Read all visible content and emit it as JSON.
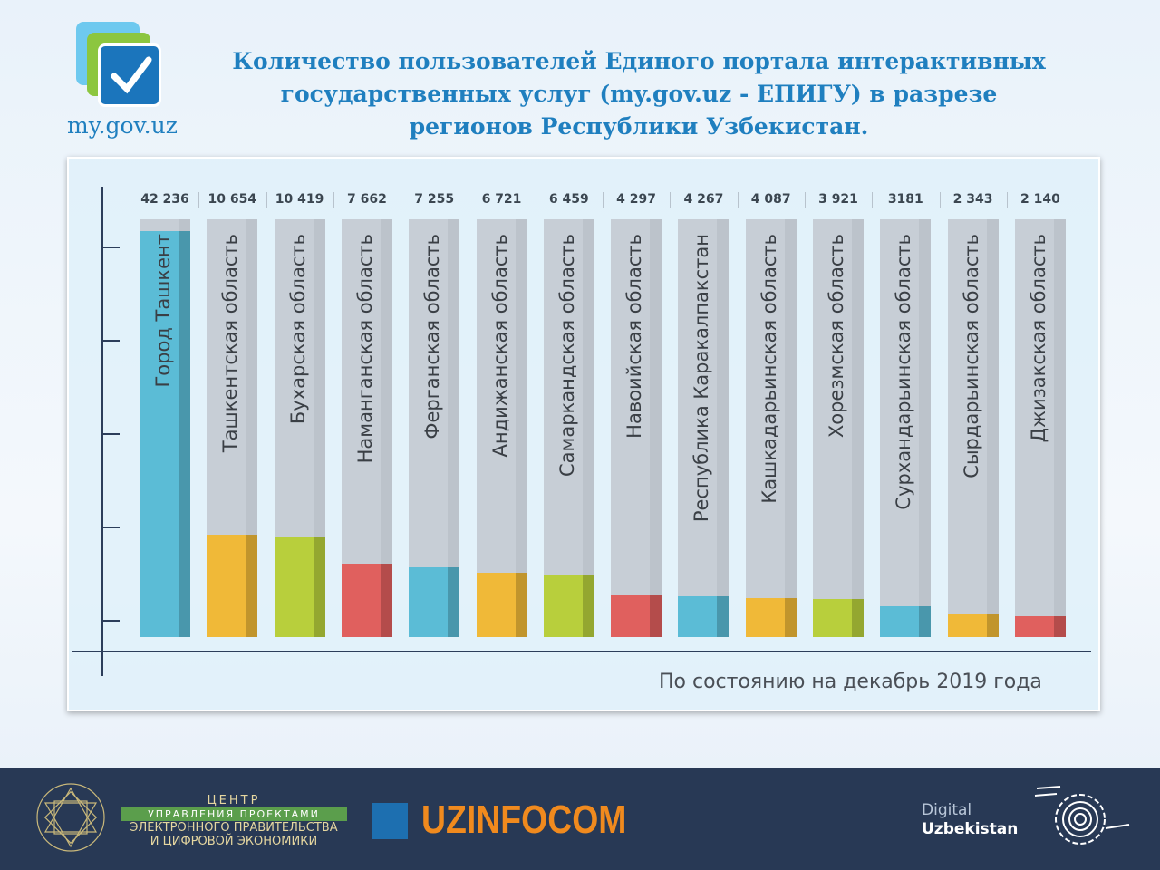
{
  "header": {
    "logo_text": "my.gov.uz",
    "title_lines": [
      "Количество пользователей Единого портала интерактивных",
      "государственных услуг (my.gov.uz - ЕПИГУ) в разрезе",
      "регионов Республики Узбекистан."
    ]
  },
  "chart_data": {
    "type": "bar",
    "title": "Количество пользователей Единого портала интерактивных государственных услуг (my.gov.uz - ЕПИГУ) в разрезе регионов Республики Узбекистан.",
    "categories": [
      "Город Ташкент",
      "Ташкентская область",
      "Бухарская область",
      "Наманганская область",
      "Ферганская область",
      "Андижанская область",
      "Самаркандская область",
      "Навоийская область",
      "Республика Каракалпакстан",
      "Кашкадарьинская область",
      "Хорезмская область",
      "Сурхандарьинская область",
      "Сырдарьинская область",
      "Джизакская область"
    ],
    "values": [
      42236,
      10654,
      10419,
      7662,
      7255,
      6721,
      6459,
      4297,
      4267,
      4087,
      3921,
      3181,
      2343,
      2140
    ],
    "value_labels": [
      "42 236",
      "10 654",
      "10 419",
      "7 662",
      "7 255",
      "6 721",
      "6 459",
      "4 297",
      "4 267",
      "4 087",
      "3 921",
      "3181",
      "2 343",
      "2 140"
    ],
    "colors": [
      "#5bbcd6",
      "#f0b938",
      "#b8cf3c",
      "#e0605e",
      "#5bbcd6",
      "#f0b938",
      "#b8cf3c",
      "#e0605e",
      "#5bbcd6",
      "#f0b938",
      "#b8cf3c",
      "#5bbcd6",
      "#f0b938",
      "#e0605e"
    ],
    "annotation": "По состоянию на декабрь 2019 года",
    "grid": false
  },
  "footer": {
    "center_lines": [
      "ЦЕНТР",
      "УПРАВЛЕНИЯ ПРОЕКТАМИ",
      "ЭЛЕКТРОННОГО ПРАВИТЕЛЬСТВА",
      "И ЦИФРОВОЙ ЭКОНОМИКИ"
    ],
    "uzinfocom": "UZINFOCOM",
    "digital": "Digital",
    "uzbekistan": "Uzbekistan"
  }
}
